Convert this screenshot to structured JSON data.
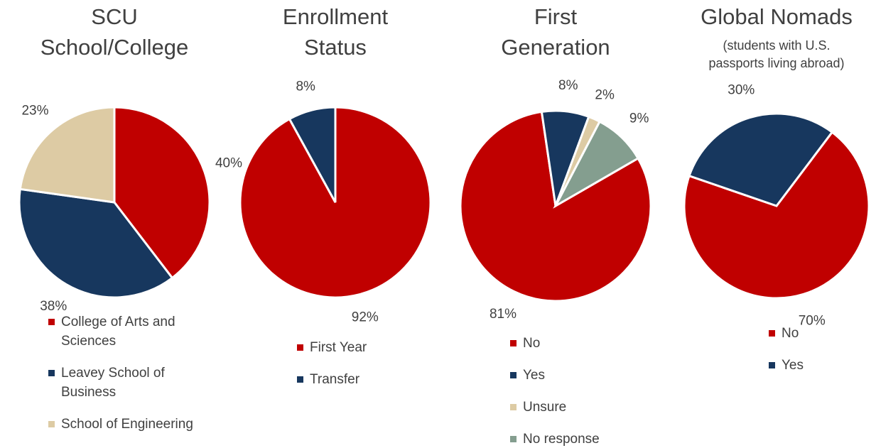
{
  "chart_data": [
    {
      "type": "pie",
      "title": "SCU\nSchool/College",
      "categories": [
        "College of Arts and Sciences",
        "Leavey School of Business",
        "School of Engineering"
      ],
      "values": [
        40,
        38,
        23
      ],
      "value_labels": [
        "40%",
        "38%",
        "23%"
      ],
      "colors": [
        "#c00000",
        "#17375e",
        "#ddcba4"
      ],
      "start_angle": 0
    },
    {
      "type": "pie",
      "title": "Enrollment\nStatus",
      "categories": [
        "First Year",
        "Transfer"
      ],
      "values": [
        92,
        8
      ],
      "value_labels": [
        "92%",
        "8%"
      ],
      "colors": [
        "#c00000",
        "#17375e"
      ],
      "start_angle": 0
    },
    {
      "type": "pie",
      "title": "First\nGeneration",
      "categories": [
        "No",
        "Yes",
        "Unsure",
        "No response"
      ],
      "values": [
        81,
        8,
        2,
        9
      ],
      "value_labels": [
        "81%",
        "8%",
        "2%",
        "9%"
      ],
      "colors": [
        "#c00000",
        "#17375e",
        "#ddcba4",
        "#849e8f"
      ],
      "start_angle": 60
    },
    {
      "type": "pie",
      "title": "Global Nomads",
      "subtitle": "(students with U.S.\npassports living abroad)",
      "categories": [
        "No",
        "Yes"
      ],
      "values": [
        70,
        30
      ],
      "value_labels": [
        "70%",
        "30%"
      ],
      "colors": [
        "#c00000",
        "#17375e"
      ],
      "start_angle": 37
    }
  ]
}
